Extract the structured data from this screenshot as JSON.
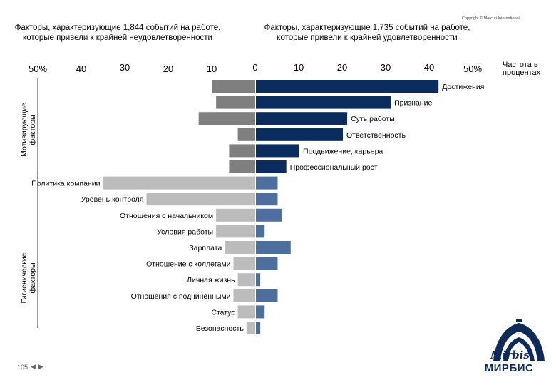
{
  "copyright": "Copyright © Mercuri International",
  "header_left": {
    "line1": "Факторы, характеризующие 1,844 событий на работе,",
    "line2": "которые привели к крайней неудовлетворенности"
  },
  "header_right": {
    "line1": "Факторы, характеризующие 1,735 событий на работе,",
    "line2": "которые привели к крайней удовлетворенности"
  },
  "frequency_label": {
    "line1": "Частота в",
    "line2": "процентах"
  },
  "page_number": "105",
  "logo": {
    "script": "Mirbis",
    "text": "МИРБИС"
  },
  "colors": {
    "motivator_dissatisfaction": "#7f7f7f",
    "motivator_satisfaction": "#0a2d5e",
    "hygiene_dissatisfaction": "#bcbcbc",
    "hygiene_satisfaction": "#4e6f9d",
    "logo": "#0d2a58"
  },
  "chart_data": {
    "type": "bar",
    "orientation": "horizontal-diverging",
    "axis_ticks": [
      "50%",
      "40",
      "30",
      "20",
      "10",
      "0",
      "10",
      "20",
      "30",
      "40",
      "50%"
    ],
    "xlim": [
      -50,
      50
    ],
    "groups": [
      {
        "label_line1": "Мотивирующие",
        "label_line2": "факторы",
        "kind": "motivator"
      },
      {
        "label_line1": "Гигиенические",
        "label_line2": "факторы",
        "kind": "hygiene"
      }
    ],
    "series": [
      {
        "name": "Крайняя неудовлетворенность",
        "side": "left"
      },
      {
        "name": "Крайняя удовлетворенность",
        "side": "right"
      }
    ],
    "factors": [
      {
        "label": "Достижения",
        "group": "motivator",
        "dissatisfaction": 10,
        "satisfaction": 42
      },
      {
        "label": "Признание",
        "group": "motivator",
        "dissatisfaction": 9,
        "satisfaction": 31
      },
      {
        "label": "Суть работы",
        "group": "motivator",
        "dissatisfaction": 13,
        "satisfaction": 21
      },
      {
        "label": "Ответственность",
        "group": "motivator",
        "dissatisfaction": 4,
        "satisfaction": 20
      },
      {
        "label": "Продвижение, карьера",
        "group": "motivator",
        "dissatisfaction": 6,
        "satisfaction": 10
      },
      {
        "label": "Профессиональный рост",
        "group": "motivator",
        "dissatisfaction": 6,
        "satisfaction": 7
      },
      {
        "label": "Политика компании",
        "group": "hygiene",
        "dissatisfaction": 35,
        "satisfaction": 5
      },
      {
        "label": "Уровень контроля",
        "group": "hygiene",
        "dissatisfaction": 25,
        "satisfaction": 5
      },
      {
        "label": "Отношения с начальником",
        "group": "hygiene",
        "dissatisfaction": 9,
        "satisfaction": 6
      },
      {
        "label": "Условия работы",
        "group": "hygiene",
        "dissatisfaction": 9,
        "satisfaction": 2
      },
      {
        "label": "Зарплата",
        "group": "hygiene",
        "dissatisfaction": 7,
        "satisfaction": 8
      },
      {
        "label": "Отношение с коллегами",
        "group": "hygiene",
        "dissatisfaction": 5,
        "satisfaction": 5
      },
      {
        "label": "Личная жизнь",
        "group": "hygiene",
        "dissatisfaction": 4,
        "satisfaction": 1
      },
      {
        "label": "Отношения с подчиненными",
        "group": "hygiene",
        "dissatisfaction": 5,
        "satisfaction": 5
      },
      {
        "label": "Статус",
        "group": "hygiene",
        "dissatisfaction": 4,
        "satisfaction": 2
      },
      {
        "label": "Безопасность",
        "group": "hygiene",
        "dissatisfaction": 2,
        "satisfaction": 1
      }
    ]
  }
}
